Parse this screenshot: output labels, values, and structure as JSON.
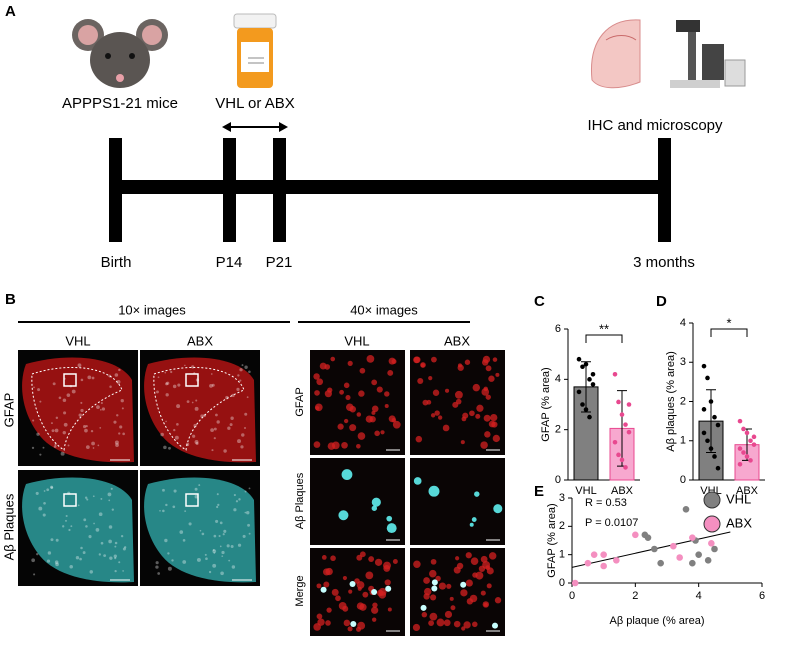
{
  "panel_a": {
    "label": "A",
    "mice": "APPPS1-21 mice",
    "treatment": "VHL or ABX",
    "analysis": "IHC and microscopy",
    "timepoints": [
      "Birth",
      "P14",
      "P21",
      "3 months"
    ]
  },
  "panel_b": {
    "label": "B",
    "low_mag": "10× images",
    "high_mag": "40× images",
    "groups": [
      "VHL",
      "ABX"
    ],
    "low_rows": [
      "GFAP",
      "Aβ Plaques"
    ],
    "high_rows": [
      "GFAP",
      "Aβ Plaques",
      "Merge"
    ]
  },
  "chart_data": [
    {
      "type": "bar",
      "label": "C",
      "y_label": "GFAP (% area)",
      "categories": [
        "VHL",
        "ABX"
      ],
      "values": [
        3.7,
        2.05
      ],
      "errors": [
        1.0,
        1.5
      ],
      "colors": [
        "#808080",
        "#f7a8cf"
      ],
      "edge_colors": [
        "#000000",
        "#e8488f"
      ],
      "points": [
        [
          4.8,
          4.5,
          4.6,
          4.0,
          3.8,
          3.5,
          3.0,
          2.8,
          2.5,
          4.2
        ],
        [
          4.2,
          3.1,
          2.6,
          2.2,
          1.9,
          1.5,
          1.0,
          0.8,
          0.5,
          3.0
        ]
      ],
      "point_colors": [
        "#000000",
        "#e8488f"
      ],
      "ylim": [
        0,
        6
      ],
      "yticks": [
        0,
        2,
        4,
        6
      ],
      "significance": "**"
    },
    {
      "type": "bar",
      "label": "D",
      "y_label": "Aβ plaques (% area)",
      "categories": [
        "VHL",
        "ABX"
      ],
      "values": [
        1.5,
        0.9
      ],
      "errors": [
        0.8,
        0.4
      ],
      "colors": [
        "#808080",
        "#f7a8cf"
      ],
      "edge_colors": [
        "#000000",
        "#e8488f"
      ],
      "points": [
        [
          2.9,
          2.6,
          2.0,
          1.6,
          1.4,
          1.2,
          1.0,
          0.8,
          0.6,
          0.3,
          1.8
        ],
        [
          1.5,
          1.3,
          1.2,
          1.0,
          0.9,
          0.8,
          0.7,
          0.6,
          0.5,
          1.1,
          0.4
        ]
      ],
      "point_colors": [
        "#000000",
        "#e8488f"
      ],
      "ylim": [
        0,
        4
      ],
      "yticks": [
        0,
        1,
        2,
        3,
        4
      ],
      "significance": "*"
    },
    {
      "type": "scatter",
      "label": "E",
      "x_label": "Aβ plaque (% area)",
      "y_label": "GFAP (% area)",
      "annotations": [
        "R = 0.53",
        "P = 0.0107"
      ],
      "series": [
        {
          "name": "VHL",
          "color": "#808080",
          "x": [
            2.3,
            2.4,
            2.6,
            2.8,
            3.6,
            3.8,
            4.0,
            4.3,
            4.4,
            4.5,
            3.9
          ],
          "values": [
            1.7,
            1.6,
            1.2,
            0.7,
            2.6,
            0.7,
            1.0,
            0.8,
            2.1,
            1.2,
            1.5
          ]
        },
        {
          "name": "ABX",
          "color": "#f48fc0",
          "x": [
            0.1,
            0.5,
            0.7,
            1.0,
            1.0,
            1.4,
            2.0,
            3.2,
            3.4,
            3.8,
            4.4
          ],
          "values": [
            0.0,
            0.7,
            1.0,
            1.0,
            0.6,
            0.8,
            1.7,
            1.3,
            0.9,
            1.6,
            1.4
          ]
        }
      ],
      "trendline": {
        "x": [
          0,
          5
        ],
        "values": [
          0.55,
          1.8
        ]
      },
      "xlim": [
        0,
        6
      ],
      "xticks": [
        0,
        2,
        4,
        6
      ],
      "ylim": [
        0,
        3
      ],
      "yticks": [
        0,
        1,
        2,
        3
      ]
    }
  ]
}
